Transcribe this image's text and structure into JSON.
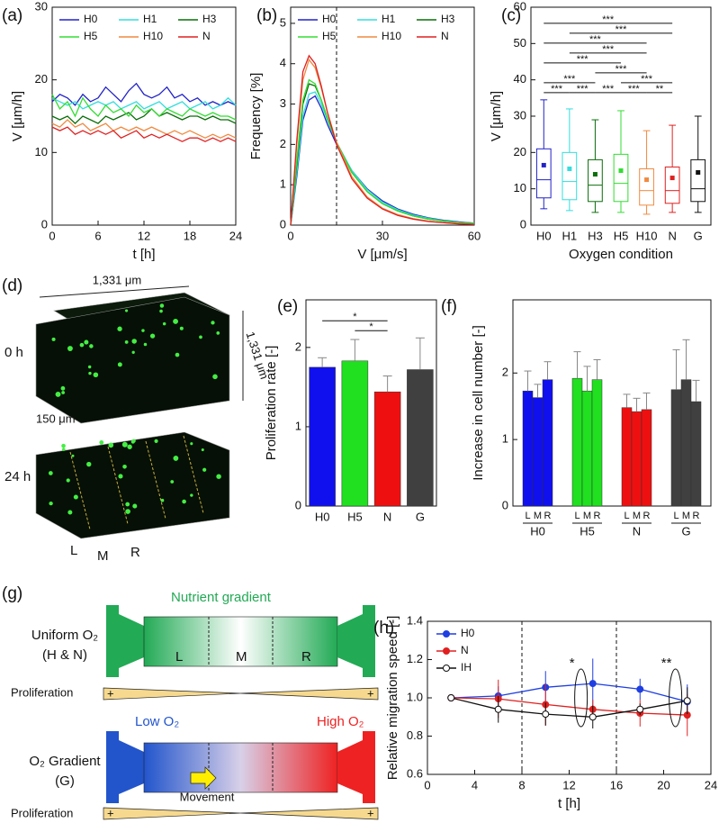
{
  "chart_data": [
    {
      "type": "line",
      "label": "(a)",
      "xlabel": "t [h]",
      "ylabel": "V [μm/h]",
      "legend": "top",
      "x": [
        0,
        1,
        2,
        3,
        4,
        5,
        6,
        7,
        8,
        9,
        10,
        11,
        12,
        13,
        14,
        15,
        16,
        17,
        18,
        19,
        20,
        21,
        22,
        23,
        24
      ],
      "xlim": [
        0,
        24
      ],
      "xticks": [
        0,
        6,
        12,
        18,
        24
      ],
      "ylim": [
        0,
        30
      ],
      "yticks": [
        0,
        10,
        20,
        30
      ],
      "series": [
        {
          "name": "H0",
          "color": "#2222c8",
          "values": [
            17,
            18,
            17.5,
            16.5,
            18,
            17,
            17.5,
            19,
            18,
            17,
            18.5,
            19.5,
            18,
            17.5,
            18,
            19,
            17.5,
            18,
            17,
            17.5,
            16.5,
            17,
            16.5,
            17,
            16.5
          ]
        },
        {
          "name": "H1",
          "color": "#33dddd",
          "values": [
            17.5,
            17,
            16.5,
            17,
            16,
            16.5,
            17,
            16.5,
            17,
            16,
            16.5,
            17,
            16,
            16.5,
            17,
            16,
            16.5,
            17,
            16,
            16.5,
            17,
            16,
            16.5,
            17.5,
            16.5
          ]
        },
        {
          "name": "H3",
          "color": "#0a6e0a",
          "values": [
            15,
            14.5,
            15,
            14,
            15,
            14.5,
            14,
            15,
            14.5,
            15,
            15.5,
            14.5,
            15,
            16,
            15,
            15.5,
            15,
            14.5,
            15,
            15,
            14.5,
            15,
            14.5,
            14.5,
            14
          ]
        },
        {
          "name": "H5",
          "color": "#33dd33",
          "values": [
            18,
            16,
            17,
            15,
            17.5,
            16,
            15,
            16.5,
            15.5,
            16,
            15,
            16.5,
            15.5,
            16,
            15,
            16,
            15.5,
            15,
            16,
            15.5,
            15,
            15.5,
            15,
            15,
            14.5
          ]
        },
        {
          "name": "H10",
          "color": "#f08a40",
          "values": [
            14,
            13.5,
            14.5,
            13.5,
            14,
            13,
            13.5,
            14,
            13,
            13.5,
            13,
            13.5,
            13,
            13.5,
            13,
            12.5,
            13,
            12.5,
            13,
            12.5,
            12,
            12.5,
            12,
            12.5,
            12
          ]
        },
        {
          "name": "N",
          "color": "#e02020",
          "values": [
            13.5,
            13,
            13.5,
            12.5,
            13,
            12.5,
            13,
            12.5,
            13,
            12,
            12.5,
            13,
            12,
            12.5,
            12,
            12.5,
            12,
            11.5,
            12,
            12,
            11.5,
            12,
            11.5,
            12,
            11.5
          ]
        }
      ]
    },
    {
      "type": "line",
      "label": "(b)",
      "xlabel": "V [μm/s]",
      "ylabel": "Frequency [%]",
      "legend": "top",
      "x": [
        0,
        2,
        4,
        6,
        8,
        10,
        12,
        15,
        20,
        25,
        30,
        35,
        40,
        45,
        50,
        55,
        60
      ],
      "vlines": [
        15
      ],
      "xlim": [
        0,
        60
      ],
      "xticks": [
        0,
        30,
        60
      ],
      "ylim": [
        0,
        5.4
      ],
      "yticks": [
        0,
        1,
        2,
        3,
        4,
        5
      ],
      "series": [
        {
          "name": "H0",
          "color": "#2222c8",
          "values": [
            0,
            1.2,
            2.6,
            3.1,
            3.2,
            2.9,
            2.5,
            2.0,
            1.35,
            0.9,
            0.6,
            0.4,
            0.27,
            0.18,
            0.12,
            0.08,
            0.05
          ]
        },
        {
          "name": "H1",
          "color": "#33dddd",
          "values": [
            0,
            1.3,
            2.7,
            3.25,
            3.3,
            3.0,
            2.6,
            2.05,
            1.35,
            0.88,
            0.57,
            0.38,
            0.25,
            0.17,
            0.11,
            0.07,
            0.05
          ]
        },
        {
          "name": "H3",
          "color": "#0a6e0a",
          "values": [
            0,
            1.5,
            3.0,
            3.5,
            3.45,
            3.1,
            2.65,
            2.05,
            1.3,
            0.83,
            0.53,
            0.35,
            0.23,
            0.15,
            0.1,
            0.06,
            0.04
          ]
        },
        {
          "name": "H5",
          "color": "#33dd33",
          "values": [
            0,
            1.6,
            3.1,
            3.6,
            3.5,
            3.1,
            2.65,
            2.05,
            1.3,
            0.83,
            0.53,
            0.35,
            0.23,
            0.15,
            0.1,
            0.06,
            0.04
          ]
        },
        {
          "name": "H10",
          "color": "#f08a40",
          "values": [
            0,
            2.0,
            3.6,
            4.1,
            3.9,
            3.4,
            2.8,
            2.05,
            1.2,
            0.7,
            0.42,
            0.26,
            0.16,
            0.1,
            0.06,
            0.04,
            0.02
          ]
        },
        {
          "name": "N",
          "color": "#e02020",
          "values": [
            0,
            2.1,
            3.8,
            4.2,
            4.0,
            3.45,
            2.8,
            2.0,
            1.15,
            0.67,
            0.4,
            0.24,
            0.15,
            0.09,
            0.06,
            0.03,
            0.02
          ]
        }
      ]
    },
    {
      "type": "box",
      "label": "(c)",
      "xlabel": "Oxygen condition",
      "ylabel": "V [μm/h]",
      "categories": [
        "H0",
        "H1",
        "H3",
        "H5",
        "H10",
        "N",
        "G"
      ],
      "colors": [
        "#2222c8",
        "#33dddd",
        "#0a6e0a",
        "#33dd33",
        "#f08a40",
        "#e02020",
        "#111111"
      ],
      "whisker_low": [
        4.5,
        4,
        3.5,
        3.5,
        3,
        3.5,
        3.5
      ],
      "q1": [
        7.5,
        7,
        6.5,
        6.5,
        5.5,
        6,
        6.5
      ],
      "median": [
        12.5,
        12,
        11,
        11.5,
        9.5,
        9.5,
        10
      ],
      "q3": [
        21,
        20,
        18,
        19.5,
        15.5,
        16,
        18
      ],
      "whisker_high": [
        34.5,
        32,
        29,
        31.5,
        26,
        27.5,
        30
      ],
      "mean": [
        16.5,
        15.5,
        14,
        15,
        12.5,
        13,
        14.5
      ],
      "ylim": [
        0,
        60
      ],
      "yticks": [
        0,
        10,
        20,
        30,
        40,
        50,
        60
      ],
      "significance": [
        {
          "pair": [
            0,
            1
          ],
          "label": "***"
        },
        {
          "pair": [
            1,
            2
          ],
          "label": "***"
        },
        {
          "pair": [
            2,
            3
          ],
          "label": "***"
        },
        {
          "pair": [
            3,
            4
          ],
          "label": "***"
        },
        {
          "pair": [
            4,
            5
          ],
          "label": "**"
        },
        {
          "pair": [
            0,
            2
          ],
          "label": "***"
        },
        {
          "pair": [
            3,
            5
          ],
          "label": "***"
        },
        {
          "pair": [
            2,
            4
          ],
          "label": "***"
        },
        {
          "pair": [
            0,
            3
          ],
          "label": "***"
        },
        {
          "pair": [
            1,
            4
          ],
          "label": "***"
        },
        {
          "pair": [
            0,
            4
          ],
          "label": "***"
        },
        {
          "pair": [
            1,
            5
          ],
          "label": "***"
        },
        {
          "pair": [
            0,
            5
          ],
          "label": "***"
        }
      ]
    },
    {
      "type": "bar",
      "label": "(e)",
      "ylabel": "Proliferation rate [-]",
      "categories": [
        "H0",
        "H5",
        "N",
        "G"
      ],
      "values": [
        1.75,
        1.83,
        1.44,
        1.72
      ],
      "errors": [
        0.12,
        0.27,
        0.2,
        0.4
      ],
      "colors": [
        "#1010ee",
        "#20e020",
        "#ee1010",
        "#404040"
      ],
      "ylim": [
        0,
        2.6
      ],
      "yticks": [
        0,
        1,
        2
      ],
      "significance": [
        {
          "pair": [
            1,
            2
          ],
          "label": "*"
        },
        {
          "pair": [
            0,
            2
          ],
          "label": "*"
        }
      ]
    },
    {
      "type": "groupbar",
      "label": "(f)",
      "ylabel": "Increase in cell number [-]",
      "categories": [
        "L",
        "M",
        "R"
      ],
      "ylim": [
        0,
        3.1
      ],
      "yticks": [
        0,
        1,
        2
      ],
      "series": [
        {
          "name": "H0",
          "color": "#1010ee",
          "values": [
            1.73,
            1.63,
            1.9
          ],
          "errors": [
            0.3,
            0.2,
            0.27
          ]
        },
        {
          "name": "H5",
          "color": "#20e020",
          "values": [
            1.92,
            1.73,
            1.9
          ],
          "errors": [
            0.4,
            0.37,
            0.3
          ]
        },
        {
          "name": "N",
          "color": "#ee1010",
          "values": [
            1.48,
            1.42,
            1.45
          ],
          "errors": [
            0.2,
            0.2,
            0.25
          ]
        },
        {
          "name": "G",
          "color": "#404040",
          "values": [
            1.75,
            1.9,
            1.57
          ],
          "errors": [
            0.6,
            0.6,
            0.32
          ]
        }
      ]
    },
    {
      "type": "line",
      "label": "(h)",
      "xlabel": "t [h]",
      "ylabel": "Relative migration speed [-]",
      "legend": "upper left",
      "x": [
        2,
        6,
        10,
        14,
        18,
        22
      ],
      "vlines": [
        8,
        16
      ],
      "significance": [
        "*",
        "**"
      ],
      "xlim": [
        0,
        24
      ],
      "xticks": [
        0,
        4,
        8,
        12,
        16,
        20,
        24
      ],
      "ylim": [
        0.6,
        1.4
      ],
      "yticks": [
        0.6,
        0.8,
        {
          "value": 1,
          "label": "1.0"
        },
        1.2,
        1.4
      ],
      "series": [
        {
          "name": "H0",
          "color": "#1f3fe0",
          "marker": "filled",
          "values": [
            1.0,
            1.01,
            1.055,
            1.075,
            1.045,
            0.98
          ],
          "errors": [
            0,
            0.05,
            0.085,
            0.13,
            0.055,
            0.09
          ]
        },
        {
          "name": "N",
          "color": "#e02020",
          "marker": "filled",
          "values": [
            1.0,
            0.995,
            0.965,
            0.94,
            0.92,
            0.91
          ],
          "errors": [
            0,
            0.1,
            0.11,
            0.05,
            0.07,
            0.11
          ]
        },
        {
          "name": "IH",
          "color": "#111111",
          "marker": "open",
          "values": [
            1.0,
            0.94,
            0.915,
            0.9,
            0.94,
            0.985
          ],
          "errors": [
            0,
            0.07,
            0.06,
            0.06,
            0.03,
            0.07
          ]
        }
      ]
    }
  ],
  "image_d": {
    "label": "(d)",
    "t0": "0 h",
    "t24": "24 h",
    "width": "1,331 μm",
    "depth": "1,331 μm",
    "height": "150 μm",
    "regions": [
      "L",
      "M",
      "R"
    ]
  },
  "diagram_g": {
    "label": "(g)",
    "nutrient": "Nutrient gradient",
    "uniform": "Uniform O₂",
    "uniform_sub": "(H & N)",
    "regions": [
      "L",
      "M",
      "R"
    ],
    "proliferation": "Proliferation",
    "plus": "+",
    "low": "Low O₂",
    "high": "High O₂",
    "gradient": "O₂ Gradient",
    "gradient_sub": "(G)",
    "movement": "Movement"
  }
}
